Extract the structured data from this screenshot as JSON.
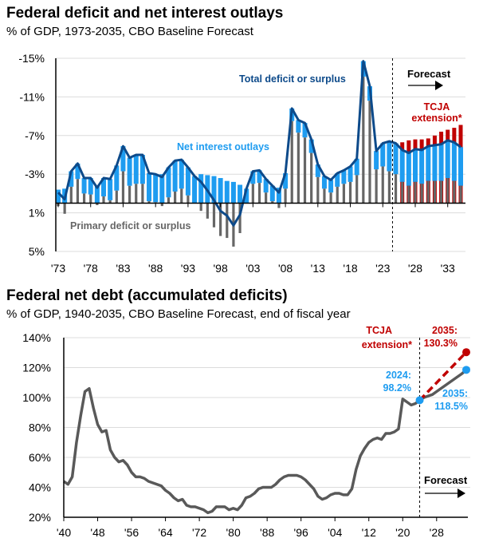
{
  "chart_data": [
    {
      "type": "bar",
      "title": "Federal deficit and net interest outlays",
      "subtitle": "% of GDP, 1973-2035, CBO Baseline Forecast",
      "ylim": [
        5,
        -15
      ],
      "y_ticks": [
        -15,
        -11,
        -7,
        -3,
        1,
        5
      ],
      "y_tick_labels": [
        "-15%",
        "-11%",
        "-7%",
        "-3%",
        "1%",
        "5%"
      ],
      "x_tick_labels": [
        "'73",
        "'78",
        "'83",
        "'88",
        "'93",
        "'98",
        "'03",
        "'08",
        "'13",
        "'18",
        "'23",
        "'28",
        "'33"
      ],
      "x_tick_years": [
        1973,
        1978,
        1983,
        1988,
        1993,
        1998,
        2003,
        2008,
        2013,
        2018,
        2023,
        2028,
        2033
      ],
      "grid": true,
      "forecast_start": 2025,
      "years": [
        1973,
        1974,
        1975,
        1976,
        1977,
        1978,
        1979,
        1980,
        1981,
        1982,
        1983,
        1984,
        1985,
        1986,
        1987,
        1988,
        1989,
        1990,
        1991,
        1992,
        1993,
        1994,
        1995,
        1996,
        1997,
        1998,
        1999,
        2000,
        2001,
        2002,
        2003,
        2004,
        2005,
        2006,
        2007,
        2008,
        2009,
        2010,
        2011,
        2012,
        2013,
        2014,
        2015,
        2016,
        2017,
        2018,
        2019,
        2020,
        2021,
        2022,
        2023,
        2024,
        2025,
        2026,
        2027,
        2028,
        2029,
        2030,
        2031,
        2032,
        2033,
        2034,
        2035
      ],
      "series": [
        {
          "name": "Total deficit or surplus",
          "color": "#0d4a8a",
          "values": [
            -1.1,
            -0.4,
            -3.3,
            -4.1,
            -2.6,
            -2.6,
            -1.6,
            -2.6,
            -2.5,
            -3.9,
            -5.9,
            -4.7,
            -5.0,
            -5.0,
            -3.1,
            -3.0,
            -2.7,
            -3.7,
            -4.4,
            -4.5,
            -3.7,
            -2.8,
            -2.2,
            -1.3,
            -0.3,
            0.8,
            1.3,
            2.3,
            1.2,
            -1.5,
            -3.3,
            -3.4,
            -2.5,
            -1.8,
            -1.1,
            -3.1,
            -9.8,
            -8.6,
            -8.3,
            -6.6,
            -4.0,
            -2.8,
            -2.4,
            -3.1,
            -3.4,
            -3.8,
            -4.6,
            -14.7,
            -12.1,
            -5.4,
            -6.2,
            -6.4,
            -6.2,
            -5.5,
            -5.2,
            -5.6,
            -5.5,
            -5.9,
            -6.0,
            -6.1,
            -6.5,
            -6.3,
            -5.8
          ]
        },
        {
          "name": "Net interest outlays",
          "color": "#1e9cf0",
          "values": [
            -1.4,
            -1.5,
            -1.6,
            -1.6,
            -1.6,
            -1.7,
            -1.8,
            -1.9,
            -2.2,
            -2.6,
            -2.6,
            -2.9,
            -3.0,
            -3.0,
            -2.9,
            -2.9,
            -3.0,
            -3.1,
            -3.2,
            -3.0,
            -2.9,
            -2.8,
            -3.0,
            -2.9,
            -2.8,
            -2.6,
            -2.3,
            -2.2,
            -1.9,
            -1.5,
            -1.3,
            -1.3,
            -1.4,
            -1.6,
            -1.6,
            -1.6,
            -1.3,
            -1.3,
            -1.5,
            -1.4,
            -1.3,
            -1.3,
            -1.3,
            -1.4,
            -1.4,
            -1.6,
            -1.7,
            -1.6,
            -1.5,
            -1.9,
            -2.4,
            -3.1,
            -3.2,
            -3.3,
            -3.4,
            -3.4,
            -3.5,
            -3.6,
            -3.7,
            -3.8,
            -3.9,
            -4.0,
            -4.0
          ]
        },
        {
          "name": "Primary deficit or surplus",
          "color": "#666666",
          "values": [
            0.3,
            1.1,
            -1.7,
            -2.5,
            -1.0,
            -0.9,
            0.2,
            -0.7,
            -0.3,
            -1.3,
            -3.3,
            -1.8,
            -2.0,
            -2.0,
            -0.2,
            -0.1,
            0.3,
            -0.6,
            -1.2,
            -1.5,
            -0.8,
            0.0,
            0.8,
            1.6,
            2.5,
            3.4,
            3.6,
            4.5,
            3.1,
            0.0,
            -2.0,
            -2.1,
            -1.1,
            -0.2,
            0.5,
            -1.5,
            -8.5,
            -7.3,
            -6.8,
            -5.2,
            -2.7,
            -1.5,
            -1.1,
            -1.7,
            -2.0,
            -2.2,
            -2.9,
            -13.1,
            -10.6,
            -3.5,
            -3.8,
            -3.3,
            -3.0,
            -2.2,
            -1.8,
            -2.2,
            -2.0,
            -2.3,
            -2.3,
            -2.3,
            -2.6,
            -2.3,
            -1.8
          ]
        },
        {
          "name": "TCJA extension*",
          "color": "#c00000",
          "years": [
            2026,
            2027,
            2028,
            2029,
            2030,
            2031,
            2032,
            2033,
            2034,
            2035
          ],
          "values": [
            -6.3,
            -6.5,
            -6.6,
            -6.6,
            -6.7,
            -7.0,
            -7.4,
            -7.6,
            -7.8,
            -8.1
          ]
        }
      ],
      "labels": {
        "total": "Total deficit or surplus",
        "interest": "Net interest outlays",
        "primary": "Primary deficit or surplus",
        "forecast": "Forecast",
        "tcja_1": "TCJA",
        "tcja_2": "extension*"
      }
    },
    {
      "type": "line",
      "title": "Federal net debt (accumulated deficits)",
      "subtitle": "% of GDP, 1940-2035, CBO Baseline Forecast, end of fiscal year",
      "ylim": [
        20,
        140
      ],
      "y_ticks": [
        20,
        40,
        60,
        80,
        100,
        120,
        140
      ],
      "y_tick_labels": [
        "20%",
        "40%",
        "60%",
        "80%",
        "100%",
        "120%",
        "140%"
      ],
      "x_tick_labels": [
        "'40",
        "'48",
        "'56",
        "'64",
        "'72",
        "'80",
        "'88",
        "'96",
        "'04",
        "'12",
        "'20",
        "'28"
      ],
      "x_tick_years": [
        1940,
        1948,
        1956,
        1964,
        1972,
        1980,
        1988,
        1996,
        2004,
        2012,
        2020,
        2028
      ],
      "grid": true,
      "forecast_start": 2024,
      "history": {
        "start_year": 1940,
        "values": [
          44,
          42,
          47,
          70,
          88,
          104,
          106,
          93,
          82,
          77,
          78,
          65,
          60,
          57,
          58,
          55,
          50,
          47,
          47,
          46,
          44,
          43,
          42,
          41,
          38,
          36,
          33,
          31,
          32,
          28,
          27,
          27,
          26,
          25,
          23,
          24,
          27,
          27,
          27,
          25,
          26,
          25,
          28,
          33,
          34,
          36,
          39,
          40,
          40,
          40,
          42,
          45,
          47,
          48,
          48,
          48,
          47,
          45,
          42,
          39,
          34,
          32,
          33,
          35,
          36,
          36,
          35,
          35,
          39,
          52,
          61,
          66,
          70,
          72,
          73,
          72,
          76,
          76,
          77,
          79,
          99,
          97,
          95,
          96,
          98.2
        ]
      },
      "baseline_forecast": {
        "color": "#666666",
        "years": [
          2024,
          2025,
          2026,
          2027,
          2028,
          2029,
          2030,
          2031,
          2032,
          2033,
          2034,
          2035
        ],
        "values": [
          98.2,
          100,
          101,
          102,
          104,
          106,
          108,
          110,
          112,
          114,
          116,
          118.5
        ]
      },
      "tcja_forecast": {
        "color": "#c00000",
        "years": [
          2024,
          2035
        ],
        "values": [
          98.2,
          130.3
        ]
      },
      "labels": {
        "tcja_1": "TCJA",
        "tcja_2": "extension*",
        "tcja_end_1": "2035:",
        "tcja_end_2": "130.3%",
        "start_1": "2024:",
        "start_2": "98.2%",
        "base_end_1": "2035:",
        "base_end_2": "118.5%",
        "forecast": "Forecast"
      },
      "colors": {
        "line": "#595959",
        "marker_blue": "#1e9cf0",
        "marker_red": "#c00000"
      }
    }
  ]
}
